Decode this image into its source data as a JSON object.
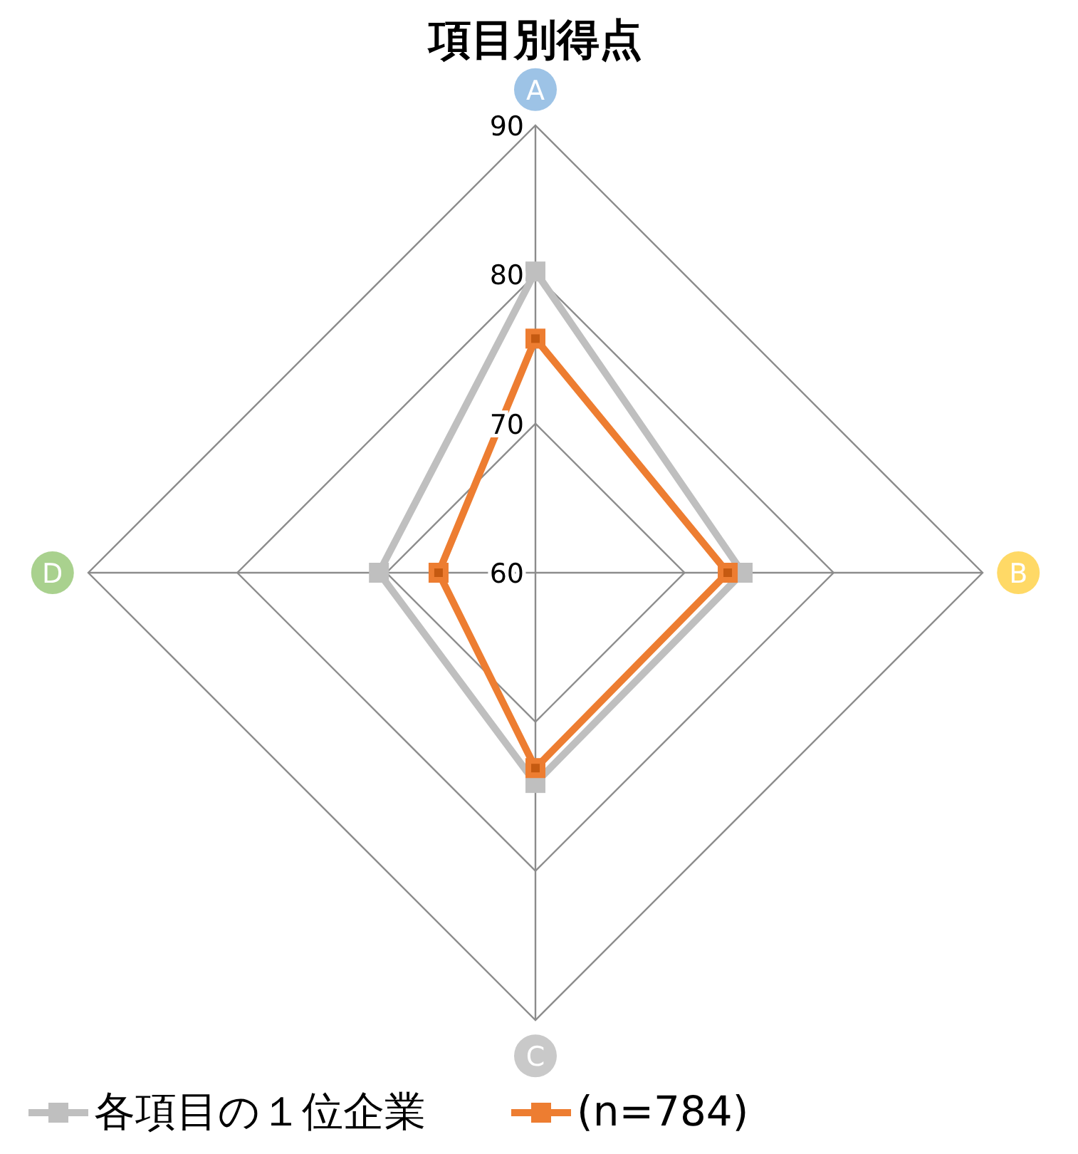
{
  "chart_data": {
    "type": "radar",
    "title": "項目別得点",
    "categories": [
      "A",
      "B",
      "C",
      "D"
    ],
    "ylim": [
      60,
      90
    ],
    "yticks": [
      60,
      70,
      80,
      90
    ],
    "marker": "square",
    "legend": "bottom",
    "series": [
      {
        "name": "各項目の１位企業",
        "color": "#bfbfbf",
        "values": [
          80.2,
          73.9,
          74.1,
          70.5
        ]
      },
      {
        "name": "(n=784)",
        "color": "#ed7d31",
        "values": [
          75.7,
          72.9,
          73.1,
          66.5
        ]
      }
    ]
  }
}
